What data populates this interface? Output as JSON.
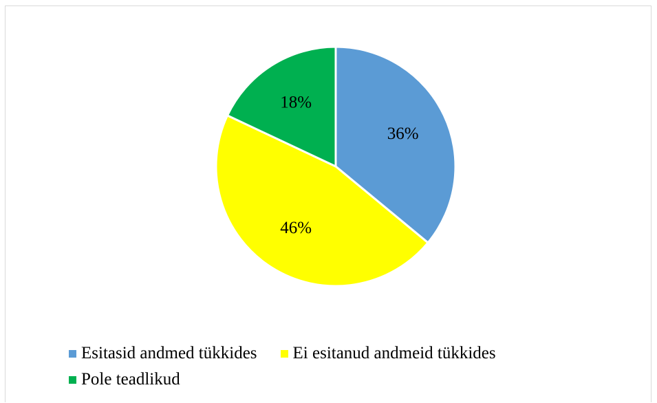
{
  "chart_data": {
    "type": "pie",
    "title": "",
    "slices": [
      {
        "label": "Esitasid andmed tükkides",
        "value": 36,
        "display": "36%",
        "color": "#5b9bd5"
      },
      {
        "label": "Ei esitanud andmeid tükkides",
        "value": 46,
        "display": "46%",
        "color": "#ffff00"
      },
      {
        "label": "Pole teadlikud",
        "value": 18,
        "display": "18%",
        "color": "#00b050"
      }
    ],
    "start_angle_deg": 0,
    "direction": "clockwise",
    "legend_position": "bottom"
  }
}
